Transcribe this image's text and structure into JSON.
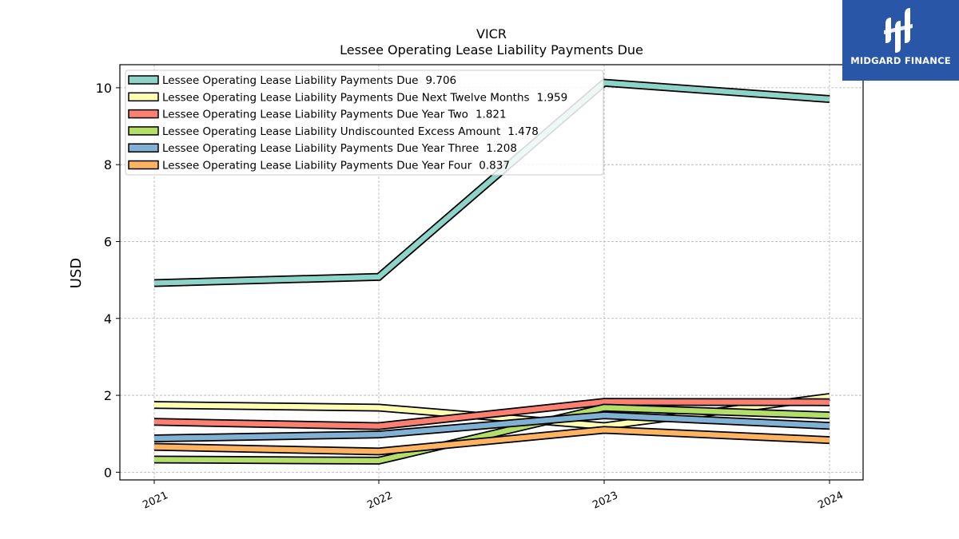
{
  "brand": {
    "name": "MIDGARD FINANCE",
    "background": "#2a56a8"
  },
  "chart_data": {
    "type": "line",
    "title": "VICR",
    "subtitle": "Lessee Operating Lease Liability Payments Due",
    "xlabel": "",
    "ylabel": "USD",
    "categories": [
      "2021",
      "2022",
      "2023",
      "2024"
    ],
    "ylim": [
      -0.2,
      10.6
    ],
    "yticks": [
      0,
      2,
      4,
      6,
      8,
      10
    ],
    "grid": true,
    "legend_position": "top-left",
    "series": [
      {
        "name": "Lessee Operating Lease Liability Payments Due",
        "legend_value": "9.706",
        "color": "#8dd3c7",
        "values": [
          4.92,
          5.08,
          10.13,
          9.706
        ]
      },
      {
        "name": "Lessee Operating Lease Liability Payments Due Next Twelve Months",
        "legend_value": "1.959",
        "color": "#ffffb3",
        "values": [
          1.75,
          1.68,
          1.2,
          1.959
        ]
      },
      {
        "name": "Lessee Operating Lease Liability Payments Due Year Two",
        "legend_value": "1.821",
        "color": "#fb8072",
        "values": [
          1.31,
          1.2,
          1.83,
          1.821
        ]
      },
      {
        "name": "Lessee Operating Lease Liability Undiscounted Excess Amount",
        "legend_value": "1.478",
        "color": "#b3de69",
        "values": [
          0.33,
          0.3,
          1.68,
          1.478
        ]
      },
      {
        "name": "Lessee Operating Lease Liability Payments Due Year Three",
        "legend_value": "1.208",
        "color": "#80b1d3",
        "values": [
          0.88,
          0.98,
          1.48,
          1.208
        ]
      },
      {
        "name": "Lessee Operating Lease Liability Payments Due Year Four",
        "legend_value": "0.837",
        "color": "#fdb462",
        "values": [
          0.66,
          0.54,
          1.1,
          0.837
        ]
      }
    ]
  }
}
